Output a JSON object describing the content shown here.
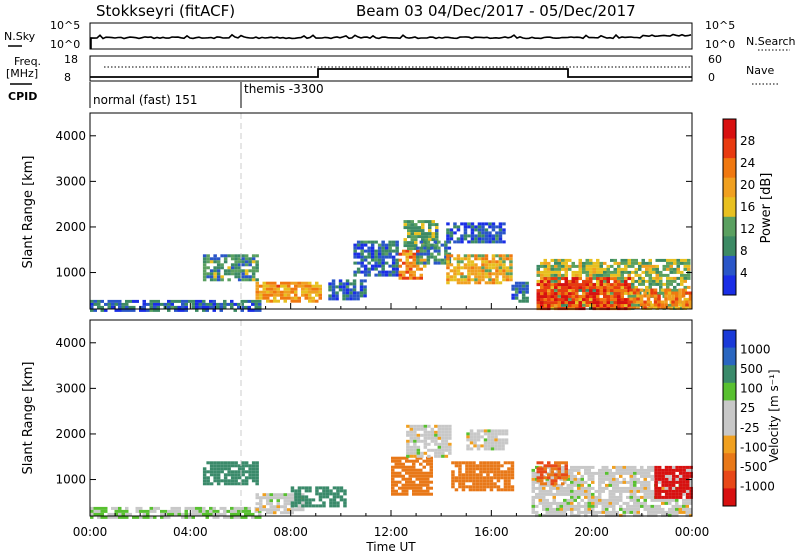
{
  "header": {
    "title": "Stokkseyri (fitACF)",
    "beam_date": "Beam 03  04/Dec/2017 - 05/Dec/2017"
  },
  "noise_panel": {
    "left_label": "N.Sky",
    "left_ticks": [
      "10^5",
      "10^0"
    ],
    "right_label": "N.Search",
    "right_ticks": [
      "10^5",
      "10^0"
    ]
  },
  "freq_panel": {
    "left_label_line1": "Freq.",
    "left_label_line2": "[MHz]",
    "left_ticks": [
      "18",
      "8"
    ],
    "right_label": "Nave",
    "right_ticks": [
      "60",
      "0"
    ]
  },
  "cpid": {
    "label": "CPID",
    "modes": [
      "normal (fast) 151",
      "themis -3300"
    ]
  },
  "colors": {
    "power_scale": [
      "#1a2ee6",
      "#2a56c8",
      "#3c8a64",
      "#5aa060",
      "#e8c020",
      "#f0a020",
      "#f07810",
      "#e83a10",
      "#d81010"
    ],
    "velocity_scale": [
      "#1a3ad8",
      "#2a66c0",
      "#3a8a6a",
      "#58c030",
      "#c8c8c8",
      "#c8c8c8",
      "#f0a020",
      "#e87818",
      "#e84818",
      "#d81010"
    ]
  },
  "chart_data": [
    {
      "type": "heatmap",
      "name": "power",
      "xlabel": "",
      "ylabel": "Slant Range [km]",
      "yticks": [
        "1000",
        "2000",
        "3000",
        "4000"
      ],
      "ylim": [
        200,
        4500
      ],
      "colorbar_label": "Power [dB]",
      "colorbar_ticks": [
        "4",
        "8",
        "12",
        "16",
        "20",
        "24",
        "28"
      ],
      "colorbar_range": [
        0,
        32
      ],
      "blobs": [
        {
          "t0": 0.0,
          "t1": 6.8,
          "r0": 200,
          "r1": 400,
          "v": 6
        },
        {
          "t0": 4.5,
          "t1": 6.6,
          "r0": 850,
          "r1": 1400,
          "v": 10
        },
        {
          "t0": 6.6,
          "t1": 9.2,
          "r0": 350,
          "r1": 800,
          "v": 20
        },
        {
          "t0": 9.5,
          "t1": 11.0,
          "r0": 400,
          "r1": 850,
          "v": 6
        },
        {
          "t0": 10.5,
          "t1": 12.2,
          "r0": 950,
          "r1": 1700,
          "v": 6
        },
        {
          "t0": 12.3,
          "t1": 13.3,
          "r0": 900,
          "r1": 1500,
          "v": 22
        },
        {
          "t0": 12.5,
          "t1": 13.8,
          "r0": 1500,
          "r1": 2150,
          "v": 12
        },
        {
          "t0": 13.0,
          "t1": 14.3,
          "r0": 1200,
          "r1": 1700,
          "v": 8
        },
        {
          "t0": 14.2,
          "t1": 16.8,
          "r0": 750,
          "r1": 1400,
          "v": 18
        },
        {
          "t0": 14.2,
          "t1": 16.5,
          "r0": 1650,
          "r1": 2100,
          "v": 6
        },
        {
          "t0": 16.8,
          "t1": 17.4,
          "r0": 350,
          "r1": 800,
          "v": 6
        },
        {
          "t0": 17.8,
          "t1": 23.9,
          "r0": 200,
          "r1": 1300,
          "v": 14
        },
        {
          "t0": 17.8,
          "t1": 21.5,
          "r0": 200,
          "r1": 900,
          "v": 27
        },
        {
          "t0": 21.5,
          "t1": 23.9,
          "r0": 200,
          "r1": 650,
          "v": 22
        }
      ]
    },
    {
      "type": "heatmap",
      "name": "velocity",
      "xlabel": "Time UT",
      "ylabel": "Slant Range [km]",
      "yticks": [
        "1000",
        "2000",
        "3000",
        "4000"
      ],
      "ylim": [
        200,
        4500
      ],
      "xticks": [
        "00:00",
        "04:00",
        "08:00",
        "12:00",
        "16:00",
        "20:00",
        "00:00"
      ],
      "xlim": [
        0,
        24
      ],
      "colorbar_label": "Velocity [m s⁻¹]",
      "colorbar_ticks": [
        "1000",
        "500",
        "100",
        "25",
        "-25",
        "-100",
        "-500",
        "-1000"
      ],
      "blobs": [
        {
          "t0": 0.0,
          "t1": 6.8,
          "r0": 200,
          "r1": 400,
          "v": 25
        },
        {
          "t0": 4.5,
          "t1": 6.6,
          "r0": 900,
          "r1": 1400,
          "v": 200
        },
        {
          "t0": 6.6,
          "t1": 8.5,
          "r0": 300,
          "r1": 700,
          "v": 0
        },
        {
          "t0": 8.0,
          "t1": 10.2,
          "r0": 400,
          "r1": 850,
          "v": 200
        },
        {
          "t0": 12.0,
          "t1": 13.6,
          "r0": 700,
          "r1": 1500,
          "v": -200
        },
        {
          "t0": 12.6,
          "t1": 14.3,
          "r0": 1500,
          "r1": 2200,
          "v": 0
        },
        {
          "t0": 14.4,
          "t1": 16.8,
          "r0": 750,
          "r1": 1400,
          "v": -200
        },
        {
          "t0": 15.0,
          "t1": 16.6,
          "r0": 1700,
          "r1": 2100,
          "v": 0
        },
        {
          "t0": 17.6,
          "t1": 23.9,
          "r0": 200,
          "r1": 1300,
          "v": 0
        },
        {
          "t0": 17.8,
          "t1": 19.0,
          "r0": 900,
          "r1": 1400,
          "v": -300
        },
        {
          "t0": 22.5,
          "t1": 23.9,
          "r0": 600,
          "r1": 1300,
          "v": -900
        }
      ]
    }
  ]
}
